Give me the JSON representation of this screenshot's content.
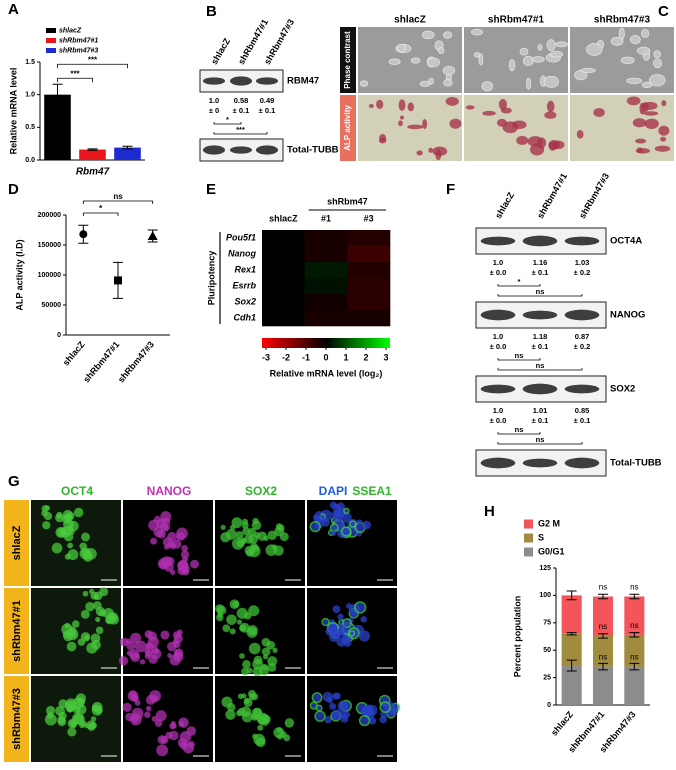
{
  "panel_labels": [
    "A",
    "B",
    "C",
    "D",
    "E",
    "F",
    "G",
    "H"
  ],
  "chart_data": [
    {
      "type": "bar",
      "ylabel": "Relative mRNA level",
      "xlabel": "Rbm47",
      "categories": [
        "shlacZ",
        "shRbm47#1",
        "shRbm47#3"
      ],
      "values": [
        1.0,
        0.16,
        0.19
      ],
      "errors": [
        0.16,
        0.01,
        0.02
      ],
      "colors": [
        "#000000",
        "#e8161b",
        "#1c2bd0"
      ],
      "ylim": [
        0,
        1.5
      ],
      "yticks": [
        {
          "value": 0,
          "label": "0.0"
        },
        {
          "value": 0.5,
          "label": "0.5"
        },
        {
          "value": 1,
          "label": "1.0"
        },
        {
          "value": 1.5,
          "label": "1.5"
        }
      ],
      "annotations": [
        "***",
        "***"
      ],
      "legend": "upper left"
    },
    {
      "type": "point",
      "ylabel": "ALP activity (I.D)",
      "categories": [
        "shlacZ",
        "shRbm47#1",
        "shRbm47#3"
      ],
      "values": [
        168000,
        91000,
        165000
      ],
      "errors": [
        15000,
        30000,
        10000
      ],
      "color": "#000000",
      "ylim": [
        0,
        200000
      ],
      "yticks": [
        0,
        50000,
        100000,
        150000,
        200000
      ],
      "annotations": [
        "ns",
        "*"
      ]
    },
    {
      "type": "stacked_bar",
      "ylabel": "Percent population",
      "categories": [
        "shlacZ",
        "shRbm47#1",
        "shRbm47#3"
      ],
      "series": [
        {
          "name": "G0/G1",
          "color": "#8c8c8c",
          "values": [
            36,
            35,
            35
          ],
          "errors": [
            5,
            3,
            3
          ]
        },
        {
          "name": "S",
          "color": "#a08b3f",
          "values": [
            29,
            28,
            29
          ],
          "errors": [
            1,
            2,
            2
          ]
        },
        {
          "name": "G2 M",
          "color": "#f4555a",
          "values": [
            35,
            36,
            35
          ],
          "errors": [
            4,
            2,
            2
          ]
        }
      ],
      "ylim": [
        0,
        125
      ],
      "yticks": [
        0,
        25,
        50,
        75,
        100,
        125
      ],
      "annotations": [
        "ns",
        "ns",
        "ns",
        "ns",
        "ns",
        "ns"
      ],
      "legend": "top"
    },
    {
      "type": "heatmap",
      "column_group": "shRbm47",
      "row_group": "Pluripotency",
      "columns": [
        "shlacZ",
        "#1",
        "#3"
      ],
      "rows": [
        "Pou5f1",
        "Nanog",
        "Rex1",
        "Esrrb",
        "Sox2",
        "Cdh1"
      ],
      "values": [
        [
          0,
          -0.3,
          -0.4
        ],
        [
          0,
          -0.3,
          -0.7
        ],
        [
          0,
          0.3,
          -0.4
        ],
        [
          0,
          0.2,
          -0.5
        ],
        [
          0,
          -0.2,
          -0.5
        ],
        [
          0,
          -0.3,
          -0.3
        ]
      ],
      "clim": [
        -3,
        3
      ],
      "colorbar_ticks": [
        -3,
        -2,
        -1,
        0,
        1,
        2,
        3
      ],
      "colorbar_label": "Relative mRNA level (log₂)"
    }
  ],
  "blot_b": {
    "lanes": [
      "shlacZ",
      "shRbm47#1",
      "shRbm47#3"
    ],
    "bands": [
      {
        "name": "RBM47",
        "quant": [
          [
            "1.0",
            "± 0"
          ],
          [
            "0.58",
            "± 0.1"
          ],
          [
            "0.49",
            "± 0.1"
          ]
        ],
        "stats": [
          "*",
          "***"
        ]
      },
      {
        "name": "Total-TUBB"
      }
    ]
  },
  "images_c": {
    "columns": [
      "shlacZ",
      "shRbm47#1",
      "shRbm47#3"
    ],
    "rows": [
      "Phase contrast",
      "ALP activity"
    ]
  },
  "blot_f": {
    "lanes": [
      "shlacZ",
      "shRbm47#1",
      "shRbm47#3"
    ],
    "bands": [
      {
        "name": "OCT4A",
        "quant": [
          [
            "1.0",
            "± 0.0"
          ],
          [
            "1.16",
            "± 0.1"
          ],
          [
            "1.03",
            "± 0.2"
          ]
        ],
        "stats": [
          "*",
          "ns"
        ]
      },
      {
        "name": "NANOG",
        "quant": [
          [
            "1.0",
            "± 0.0"
          ],
          [
            "1.18",
            "± 0.1"
          ],
          [
            "0.87",
            "± 0.2"
          ]
        ],
        "stats": [
          "ns",
          "ns"
        ]
      },
      {
        "name": "SOX2",
        "quant": [
          [
            "1.0",
            "± 0.0"
          ],
          [
            "1.01",
            "± 0.1"
          ],
          [
            "0.85",
            "± 0.1"
          ]
        ],
        "stats": [
          "ns",
          "ns"
        ]
      },
      {
        "name": "Total-TUBB"
      }
    ]
  },
  "images_g": {
    "columns": [
      "OCT4",
      "NANOG",
      "SOX2",
      "DAPI",
      "SSEA1"
    ],
    "rows": [
      "shlacZ",
      "shRbm47#1",
      "shRbm47#3"
    ]
  }
}
